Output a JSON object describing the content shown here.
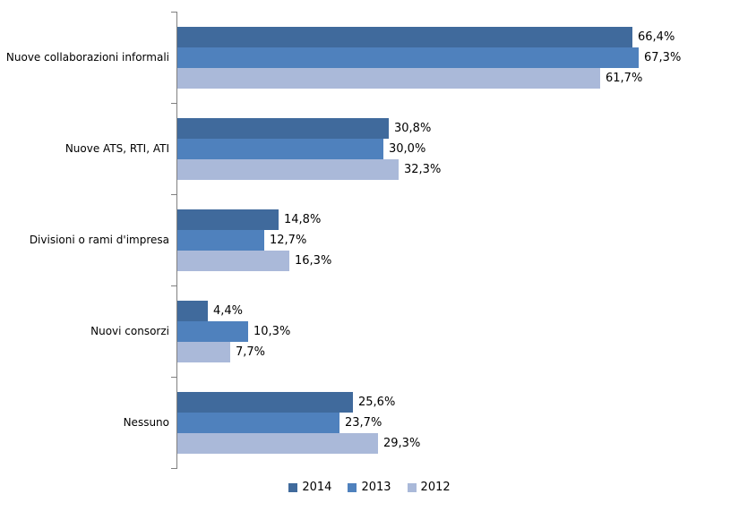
{
  "chart_data": {
    "type": "bar",
    "orientation": "horizontal",
    "title": "",
    "xlabel": "",
    "ylabel": "",
    "grid": false,
    "legend_position": "bottom",
    "xlim": [
      0,
      81
    ],
    "value_suffix": "%",
    "decimal_separator": ",",
    "axis_color": "#808080",
    "categories": [
      "Nuove collaborazioni informali",
      "Nuove ATS, RTI, ATI",
      "Divisioni o rami d'impresa",
      "Nuovi consorzi",
      "Nessuno"
    ],
    "series": [
      {
        "name": "2014",
        "color": "#406A9C",
        "values": [
          66.4,
          30.8,
          14.8,
          4.4,
          25.6
        ],
        "labels": [
          "66,4%",
          "30,8%",
          "14,8%",
          "4,4%",
          "25,6%"
        ]
      },
      {
        "name": "2013",
        "color": "#4F81BD",
        "values": [
          67.3,
          30.0,
          12.7,
          10.3,
          23.7
        ],
        "labels": [
          "67,3%",
          "30,0%",
          "12,7%",
          "10,3%",
          "23,7%"
        ]
      },
      {
        "name": "2012",
        "color": "#AAB9D9",
        "values": [
          61.7,
          32.3,
          16.3,
          7.7,
          29.3
        ],
        "labels": [
          "61,7%",
          "32,3%",
          "16,3%",
          "7,7%",
          "29,3%"
        ]
      }
    ]
  }
}
